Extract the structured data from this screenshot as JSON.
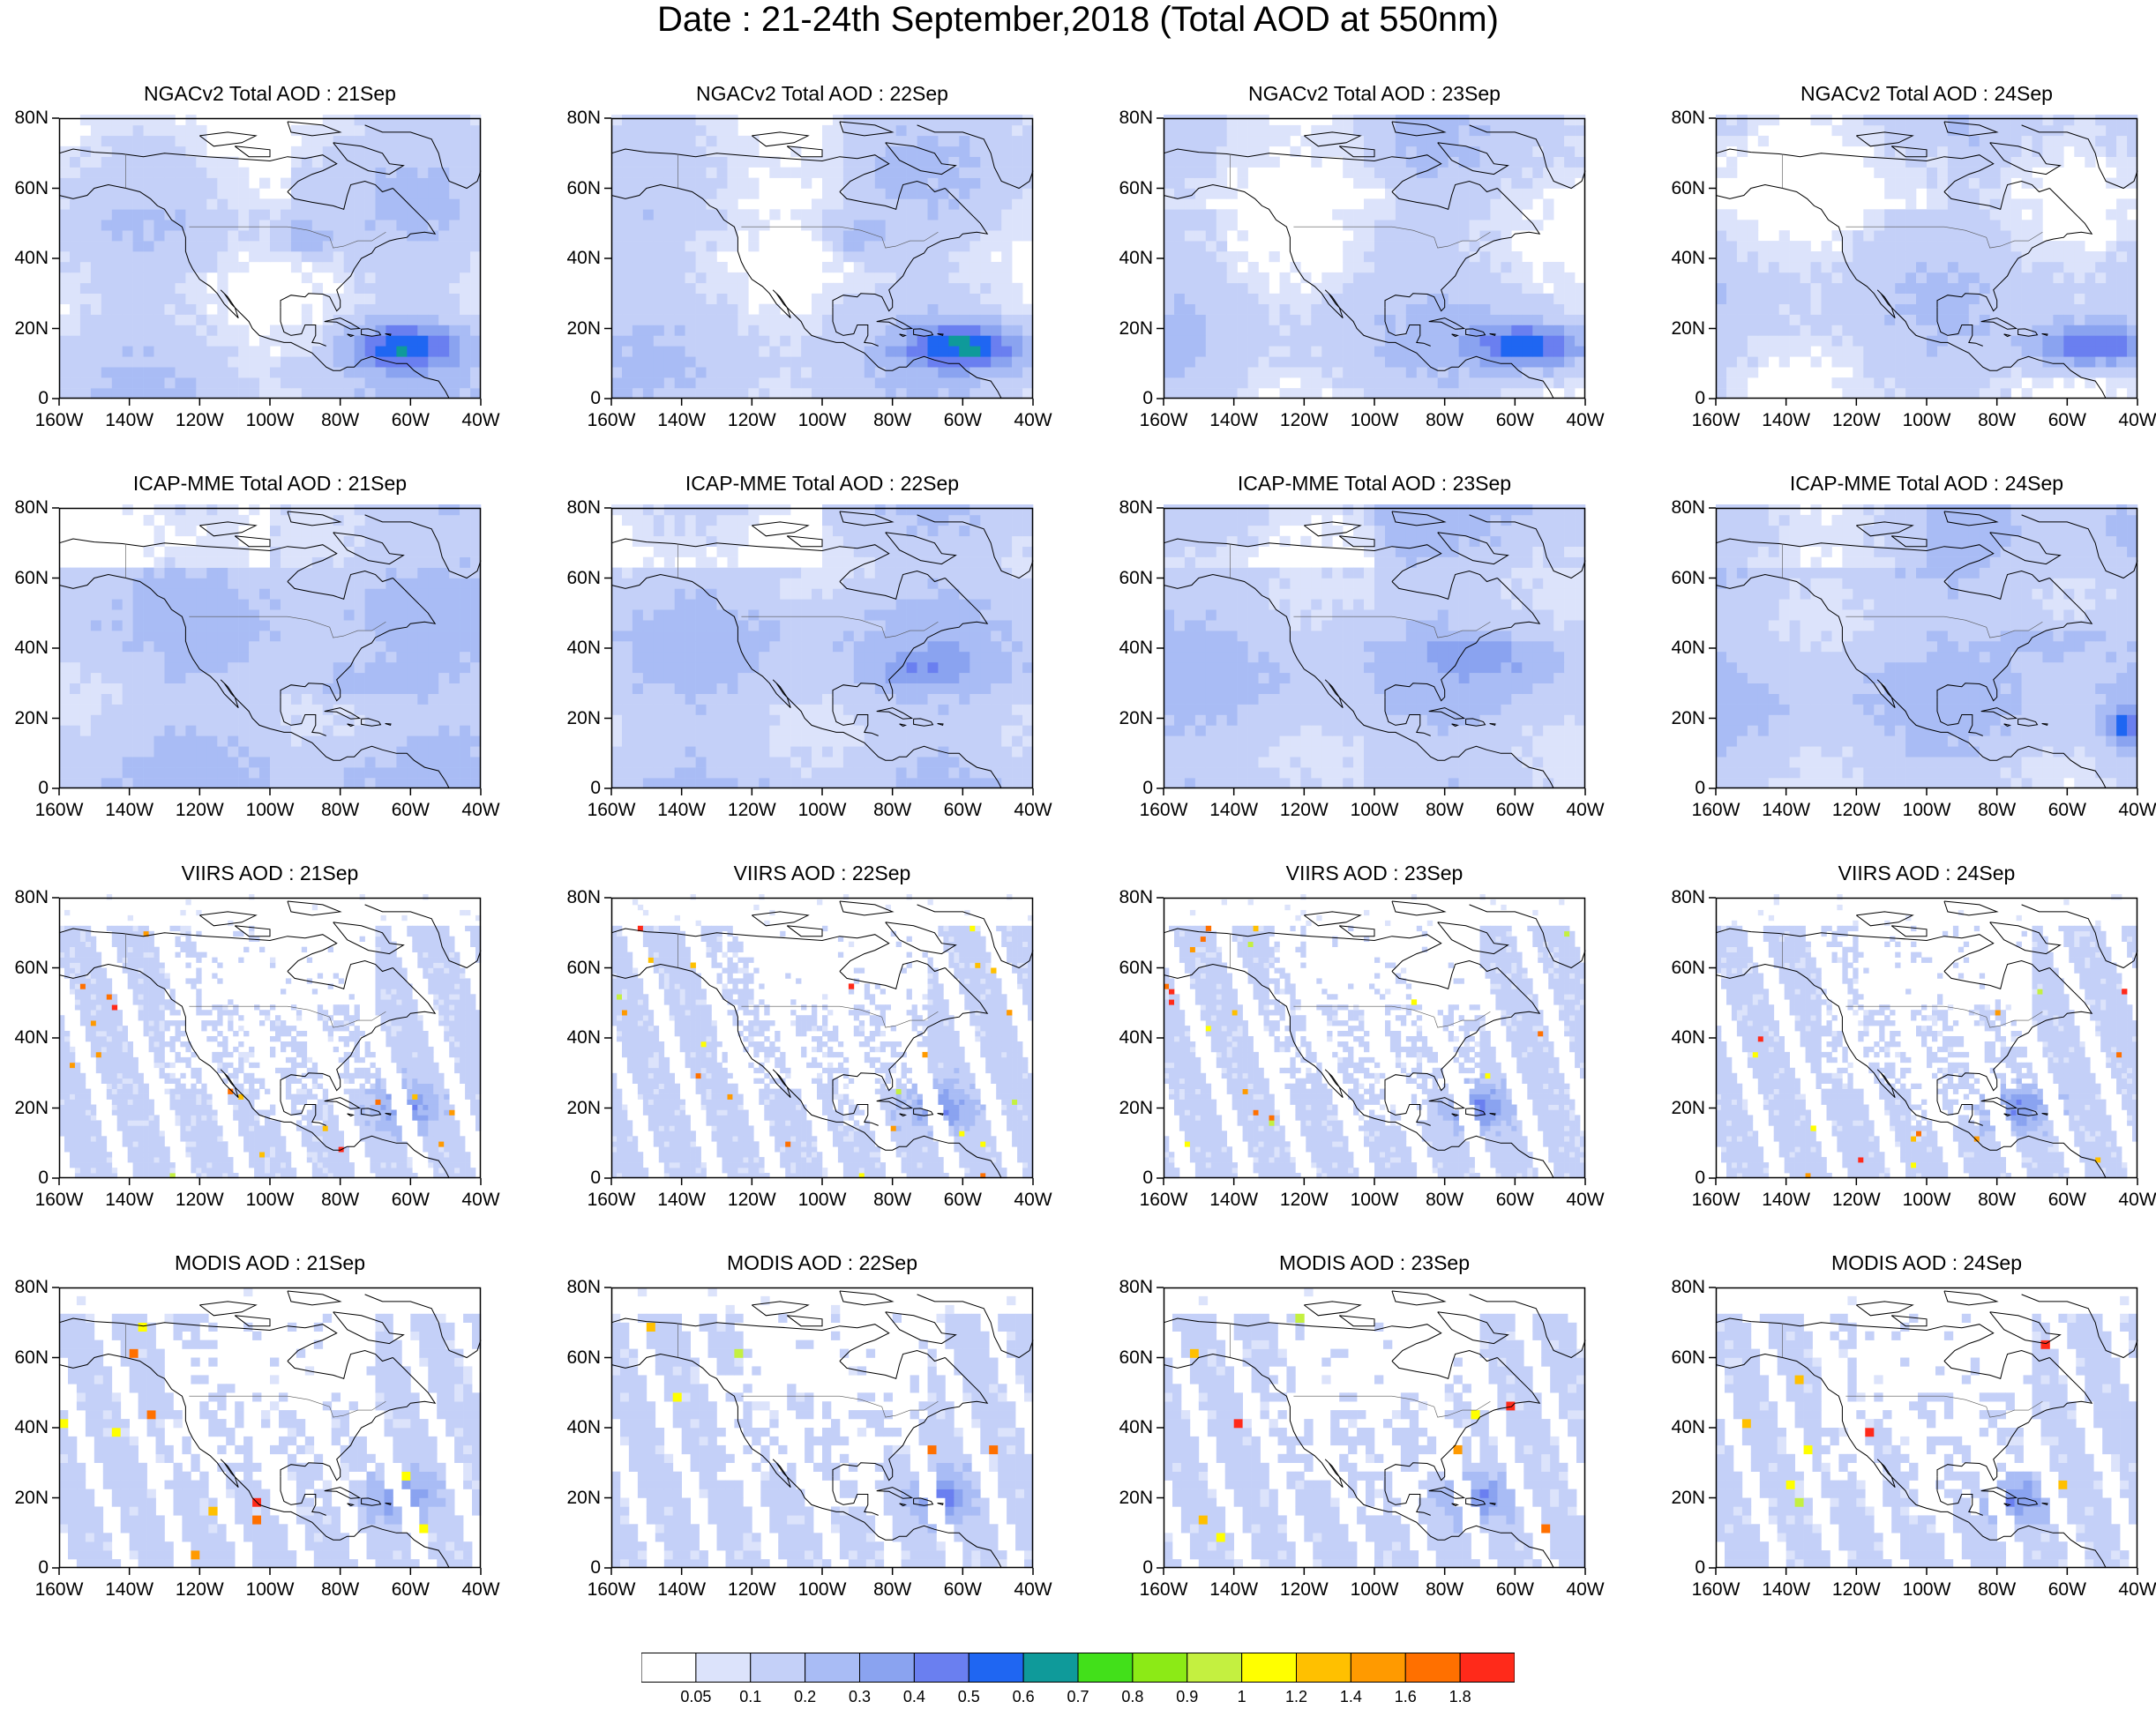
{
  "title": "Date : 21-24th September,2018 (Total AOD at 550nm)",
  "lat_labels": [
    "80N",
    "60N",
    "40N",
    "20N",
    "0"
  ],
  "lon_labels": [
    "160W",
    "140W",
    "120W",
    "100W",
    "80W",
    "60W",
    "40W"
  ],
  "rows": [
    {
      "product": "NGACv2",
      "pattern": "model",
      "titles": [
        "NGACv2 Total AOD : 21Sep",
        "NGACv2 Total AOD : 22Sep",
        "NGACv2 Total AOD : 23Sep",
        "NGACv2 Total AOD : 24Sep"
      ]
    },
    {
      "product": "ICAP-MME",
      "pattern": "ensemble",
      "titles": [
        "ICAP-MME Total AOD : 21Sep",
        "ICAP-MME Total AOD : 22Sep",
        "ICAP-MME Total AOD : 23Sep",
        "ICAP-MME Total AOD : 24Sep"
      ]
    },
    {
      "product": "VIIRS",
      "pattern": "satellite-fine",
      "titles": [
        "VIIRS AOD : 21Sep",
        "VIIRS AOD : 22Sep",
        "VIIRS AOD : 23Sep",
        "VIIRS AOD : 24Sep"
      ]
    },
    {
      "product": "MODIS",
      "pattern": "satellite-coarse",
      "titles": [
        "MODIS AOD : 21Sep",
        "MODIS AOD : 22Sep",
        "MODIS AOD : 23Sep",
        "MODIS AOD : 24Sep"
      ]
    }
  ],
  "colorbar": {
    "labels": [
      "0.05",
      "0.1",
      "0.2",
      "0.3",
      "0.4",
      "0.5",
      "0.6",
      "0.7",
      "0.8",
      "0.9",
      "1",
      "1.2",
      "1.4",
      "1.6",
      "1.8"
    ],
    "colors": [
      "#ffffff",
      "#dce3fb",
      "#c4d0f8",
      "#a9bcf5",
      "#8aa3f0",
      "#6a7ff0",
      "#1f66f2",
      "#0f9a9a",
      "#42e01a",
      "#8cea16",
      "#c4f040",
      "#ffff00",
      "#ffc000",
      "#ff9a00",
      "#ff7000",
      "#ff2a1a"
    ]
  }
}
